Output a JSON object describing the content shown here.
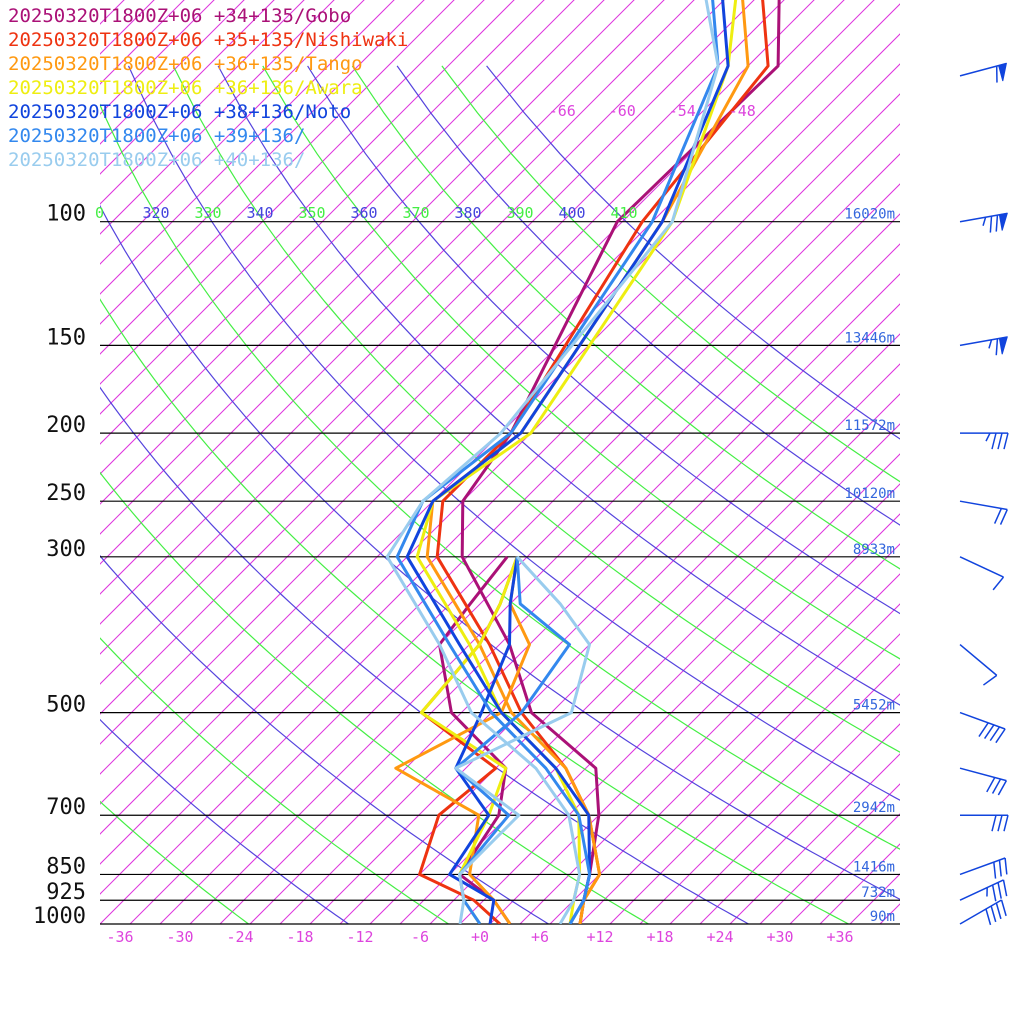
{
  "chart_data": {
    "type": "line",
    "legend": [
      {
        "label": "20250320T1800Z+06 +34+135/Gobo",
        "color": "#aa1177"
      },
      {
        "label": "20250320T1800Z+06 +35+135/Nishiwaki",
        "color": "#ee3311"
      },
      {
        "label": "20250320T1800Z+06 +36+135/Tango",
        "color": "#ff9911"
      },
      {
        "label": "20250320T1800Z+06 +36+136/Awara",
        "color": "#eeee11"
      },
      {
        "label": "20250320T1800Z+06 +38+136/Noto",
        "color": "#1144dd"
      },
      {
        "label": "20250320T1800Z+06 +39+136/",
        "color": "#3388ee"
      },
      {
        "label": "20250320T1800Z+06 +40+136/",
        "color": "#99ccee"
      }
    ],
    "pressure_levels": [
      {
        "label": "100",
        "p": 100
      },
      {
        "label": "150",
        "p": 150
      },
      {
        "label": "200",
        "p": 200
      },
      {
        "label": "250",
        "p": 250
      },
      {
        "label": "300",
        "p": 300
      },
      {
        "label": "500",
        "p": 500
      },
      {
        "label": "700",
        "p": 700
      },
      {
        "label": "850",
        "p": 850
      },
      {
        "label": "925",
        "p": 925
      },
      {
        "label": "1000",
        "p": 1000
      }
    ],
    "heights": [
      {
        "p": 100,
        "label": "16020m"
      },
      {
        "p": 150,
        "label": "13446m"
      },
      {
        "p": 200,
        "label": "11572m"
      },
      {
        "p": 250,
        "label": "10120m"
      },
      {
        "p": 300,
        "label": "8933m"
      },
      {
        "p": 500,
        "label": "5452m"
      },
      {
        "p": 700,
        "label": "2942m"
      },
      {
        "p": 850,
        "label": "1416m"
      },
      {
        "p": 925,
        "label": "732m"
      },
      {
        "p": 1000,
        "label": "90m"
      }
    ],
    "temperature_ticks": [
      "-36",
      "-30",
      "-24",
      "-18",
      "-12",
      "-6",
      "+0",
      "+6",
      "+12",
      "+18",
      "+24",
      "+30",
      "+36"
    ],
    "upper_ticks": [
      "-66",
      "-60",
      "-54",
      "-48"
    ],
    "theta_labels": [
      {
        "label": "0",
        "color": "#44ee44"
      },
      {
        "label": "320",
        "color": "#4444dd"
      },
      {
        "label": "330",
        "color": "#44ee44"
      },
      {
        "label": "340",
        "color": "#4444dd"
      },
      {
        "label": "350",
        "color": "#44ee44"
      },
      {
        "label": "360",
        "color": "#4444dd"
      },
      {
        "label": "370",
        "color": "#44ee44"
      },
      {
        "label": "380",
        "color": "#4444dd"
      },
      {
        "label": "390",
        "color": "#44ee44"
      },
      {
        "label": "400",
        "color": "#4444dd"
      },
      {
        "label": "410",
        "color": "#44ee44"
      }
    ],
    "x_range": [
      -38,
      42
    ],
    "p_range": [
      100,
      1000
    ],
    "series": [
      {
        "name": "20250320T1800Z+06 +34+135/Gobo",
        "color": "#aa1177",
        "temp": [
          [
            43,
            -66
          ],
          [
            60,
            -56
          ],
          [
            100,
            -56.5
          ],
          [
            200,
            -46
          ],
          [
            250,
            -44
          ],
          [
            300,
            -38.5
          ],
          [
            400,
            -25
          ],
          [
            500,
            -16
          ],
          [
            600,
            -4
          ],
          [
            700,
            1
          ],
          [
            850,
            6
          ],
          [
            925,
            8
          ],
          [
            1000,
            10
          ]
        ],
        "dew": [
          [
            300,
            -34
          ],
          [
            350,
            -33
          ],
          [
            400,
            -32
          ],
          [
            500,
            -24
          ],
          [
            600,
            -13
          ],
          [
            700,
            -9
          ],
          [
            850,
            -7
          ],
          [
            925,
            -1
          ],
          [
            1000,
            3
          ]
        ]
      },
      {
        "name": "20250320T1800Z+06 +35+135/Nishiwaki",
        "color": "#ee3311",
        "temp": [
          [
            43,
            -68
          ],
          [
            60,
            -57
          ],
          [
            100,
            -54
          ],
          [
            200,
            -46
          ],
          [
            250,
            -46
          ],
          [
            300,
            -41
          ],
          [
            400,
            -27
          ],
          [
            500,
            -17
          ],
          [
            600,
            -7
          ],
          [
            700,
            0
          ],
          [
            850,
            7
          ],
          [
            925,
            8
          ],
          [
            1000,
            10
          ]
        ],
        "dew": [
          [
            300,
            -33
          ],
          [
            350,
            -30
          ],
          [
            400,
            -28
          ],
          [
            500,
            -27
          ],
          [
            600,
            -14
          ],
          [
            700,
            -15
          ],
          [
            850,
            -11
          ],
          [
            925,
            -3
          ],
          [
            1000,
            2
          ]
        ]
      },
      {
        "name": "20250320T1800Z+06 +36+135/Tango",
        "color": "#ff9911",
        "temp": [
          [
            43,
            -70
          ],
          [
            60,
            -59
          ],
          [
            100,
            -52
          ],
          [
            200,
            -45
          ],
          [
            250,
            -47
          ],
          [
            300,
            -42
          ],
          [
            400,
            -28
          ],
          [
            500,
            -18
          ],
          [
            600,
            -7
          ],
          [
            700,
            0
          ],
          [
            850,
            7
          ],
          [
            925,
            8
          ],
          [
            1000,
            10
          ]
        ],
        "dew": [
          [
            300,
            -33
          ],
          [
            350,
            -29
          ],
          [
            400,
            -23
          ],
          [
            500,
            -19
          ],
          [
            600,
            -24
          ],
          [
            700,
            -11
          ],
          [
            850,
            -6
          ],
          [
            925,
            -1
          ],
          [
            1000,
            3
          ]
        ]
      },
      {
        "name": "20250320T1800Z+06 +36+136/Awara",
        "color": "#eeee11",
        "temp": [
          [
            43,
            -70
          ],
          [
            60,
            -61
          ],
          [
            100,
            -51
          ],
          [
            200,
            -44
          ],
          [
            250,
            -47
          ],
          [
            300,
            -43
          ],
          [
            400,
            -29
          ],
          [
            500,
            -19
          ],
          [
            600,
            -8
          ],
          [
            700,
            -1
          ],
          [
            850,
            5
          ],
          [
            925,
            7
          ],
          [
            1000,
            9
          ]
        ],
        "dew": [
          [
            300,
            -33
          ],
          [
            350,
            -30
          ],
          [
            400,
            -28
          ],
          [
            500,
            -27
          ],
          [
            600,
            -13
          ],
          [
            700,
            -10
          ],
          [
            850,
            -7
          ],
          [
            925,
            -4
          ],
          [
            1000,
            0
          ]
        ]
      },
      {
        "name": "20250320T1800Z+06 +38+136/Noto",
        "color": "#1144dd",
        "temp": [
          [
            43,
            -72
          ],
          [
            60,
            -61
          ],
          [
            100,
            -52
          ],
          [
            200,
            -45
          ],
          [
            250,
            -47
          ],
          [
            300,
            -44
          ],
          [
            400,
            -30
          ],
          [
            500,
            -19
          ],
          [
            600,
            -8
          ],
          [
            700,
            0
          ],
          [
            850,
            6
          ],
          [
            925,
            8
          ],
          [
            1000,
            9
          ]
        ],
        "dew": [
          [
            300,
            -33
          ],
          [
            350,
            -29
          ],
          [
            400,
            -25
          ],
          [
            500,
            -21
          ],
          [
            600,
            -18
          ],
          [
            700,
            -10
          ],
          [
            850,
            -8
          ],
          [
            925,
            -1
          ],
          [
            1000,
            1
          ]
        ]
      },
      {
        "name": "20250320T1800Z+06 +39+136/",
        "color": "#3388ee",
        "temp": [
          [
            43,
            -73
          ],
          [
            60,
            -62
          ],
          [
            100,
            -53
          ],
          [
            200,
            -46
          ],
          [
            250,
            -48
          ],
          [
            300,
            -45
          ],
          [
            400,
            -31
          ],
          [
            500,
            -20
          ],
          [
            600,
            -9
          ],
          [
            700,
            -1
          ],
          [
            850,
            6
          ],
          [
            925,
            8
          ],
          [
            1000,
            9
          ]
        ],
        "dew": [
          [
            300,
            -33
          ],
          [
            350,
            -28
          ],
          [
            400,
            -19
          ],
          [
            500,
            -17
          ],
          [
            600,
            -18
          ],
          [
            700,
            -8
          ],
          [
            850,
            -7
          ],
          [
            925,
            -4
          ],
          [
            1000,
            0
          ]
        ]
      },
      {
        "name": "20250320T1800Z+06 +40+136/",
        "color": "#99ccee",
        "temp": [
          [
            43,
            -74
          ],
          [
            60,
            -62
          ],
          [
            100,
            -51
          ],
          [
            200,
            -47
          ],
          [
            250,
            -48
          ],
          [
            300,
            -46
          ],
          [
            400,
            -32
          ],
          [
            500,
            -22
          ],
          [
            600,
            -10
          ],
          [
            700,
            -2
          ],
          [
            850,
            5
          ],
          [
            925,
            7
          ],
          [
            1000,
            8
          ]
        ],
        "dew": [
          [
            300,
            -33
          ],
          [
            350,
            -24
          ],
          [
            400,
            -17
          ],
          [
            500,
            -12
          ],
          [
            600,
            -18
          ],
          [
            700,
            -7
          ],
          [
            850,
            -7
          ],
          [
            925,
            -4
          ],
          [
            1000,
            -2
          ]
        ]
      }
    ],
    "wind_barbs": [
      {
        "p": 62,
        "dir": 255,
        "speed": 60
      },
      {
        "p": 100,
        "dir": 260,
        "speed": 75
      },
      {
        "p": 150,
        "dir": 260,
        "speed": 65
      },
      {
        "p": 200,
        "dir": 270,
        "speed": 35
      },
      {
        "p": 250,
        "dir": 280,
        "speed": 20
      },
      {
        "p": 300,
        "dir": 295,
        "speed": 10
      },
      {
        "p": 400,
        "dir": 310,
        "speed": 10
      },
      {
        "p": 500,
        "dir": 290,
        "speed": 40
      },
      {
        "p": 600,
        "dir": 285,
        "speed": 30
      },
      {
        "p": 700,
        "dir": 270,
        "speed": 30
      },
      {
        "p": 850,
        "dir": 250,
        "speed": 30
      },
      {
        "p": 925,
        "dir": 245,
        "speed": 35
      },
      {
        "p": 1000,
        "dir": 240,
        "speed": 40
      }
    ]
  }
}
